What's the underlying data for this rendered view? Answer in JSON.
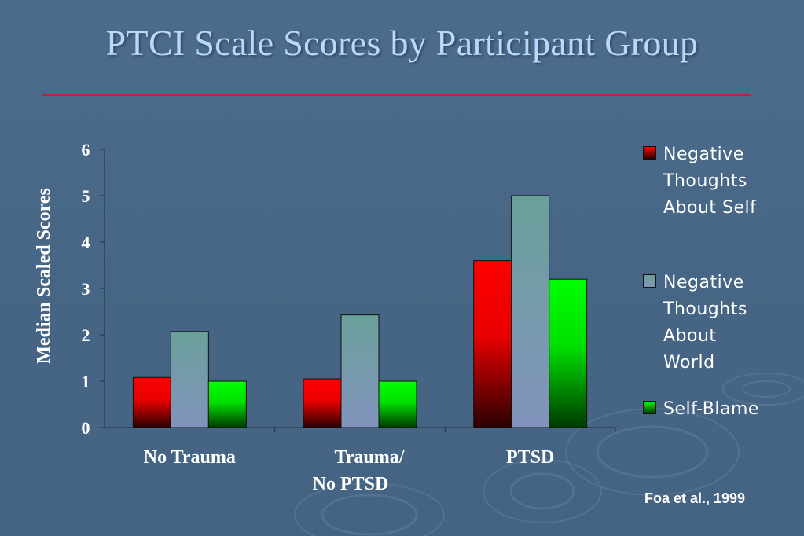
{
  "slide": {
    "title": "PTCI Scale Scores by Participant Group",
    "source": "Foa et al., 1999"
  },
  "colors": {
    "background": "#4a6a8a",
    "title": "#b9d8ff",
    "rule": "#c0203a",
    "series": [
      "#ff0000",
      "#7aa0a8",
      "#00ff00"
    ]
  },
  "chart_data": {
    "type": "bar",
    "categories": [
      "No Trauma",
      "Trauma/\nNo PTSD",
      "PTSD"
    ],
    "series": [
      {
        "name": "Negative Thoughts About Self",
        "values": [
          1.08,
          1.05,
          3.6
        ]
      },
      {
        "name": "Negative Thoughts About World",
        "values": [
          2.07,
          2.43,
          5.0
        ]
      },
      {
        "name": "Self-Blame",
        "values": [
          1.0,
          1.0,
          3.2
        ]
      }
    ],
    "ylabel": "Median Scaled Scores",
    "xlabel": "",
    "ylim": [
      0,
      6
    ],
    "yticks": [
      0,
      1,
      2,
      3,
      4,
      5,
      6
    ],
    "legend": "right",
    "grid": false
  },
  "legend": {
    "items": [
      {
        "label": "Negative\nThoughts\nAbout Self"
      },
      {
        "label": "Negative\nThoughts\nAbout\nWorld"
      },
      {
        "label": "Self-Blame"
      }
    ]
  }
}
